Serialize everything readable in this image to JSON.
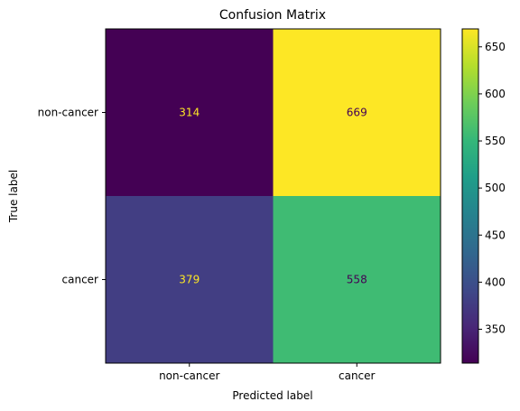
{
  "chart_data": {
    "type": "heatmap",
    "title": "Confusion Matrix",
    "xlabel": "Predicted label",
    "ylabel": "True label",
    "x_categories": [
      "non-cancer",
      "cancer"
    ],
    "y_categories": [
      "non-cancer",
      "cancer"
    ],
    "values": [
      [
        314,
        669
      ],
      [
        379,
        558
      ]
    ],
    "colorbar": {
      "ticks": [
        350,
        400,
        450,
        500,
        550,
        600,
        650
      ],
      "range": [
        314,
        669
      ],
      "colormap": "viridis"
    },
    "colors": {
      "text_on_dark": "#fde725",
      "text_on_light": "#440154"
    }
  }
}
